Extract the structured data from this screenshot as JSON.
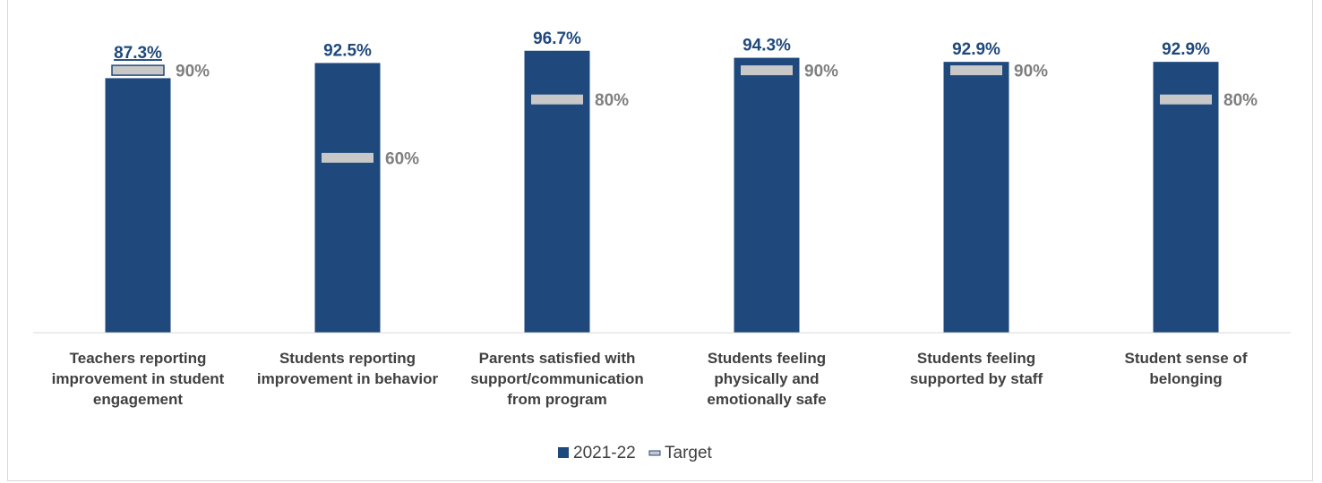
{
  "chart_data": {
    "type": "bar",
    "categories": [
      [
        "Teachers reporting",
        "improvement in student",
        "engagement"
      ],
      [
        "Students reporting",
        "improvement in behavior"
      ],
      [
        "Parents satisfied with",
        "support/communication",
        "from program"
      ],
      [
        "Students feeling",
        "physically and",
        "emotionally safe"
      ],
      [
        "Students feeling",
        "supported by staff"
      ],
      [
        "Student sense of",
        "belonging"
      ]
    ],
    "series": [
      {
        "name": "2021-22",
        "values": [
          87.3,
          92.5,
          96.7,
          94.3,
          92.9,
          92.9
        ],
        "labels": [
          "87.3%",
          "92.5%",
          "96.7%",
          "94.3%",
          "92.9%",
          "92.9%"
        ],
        "color": "#1f497d"
      },
      {
        "name": "Target",
        "values": [
          90,
          60,
          80,
          90,
          90,
          80
        ],
        "labels": [
          "90%",
          "60%",
          "80%",
          "90%",
          "90%",
          "80%"
        ],
        "color": "#c8c8c8"
      }
    ],
    "ylim": [
      0,
      100
    ],
    "grid": false,
    "legend": "bottom-center",
    "title": "",
    "xlabel": "",
    "ylabel": ""
  }
}
